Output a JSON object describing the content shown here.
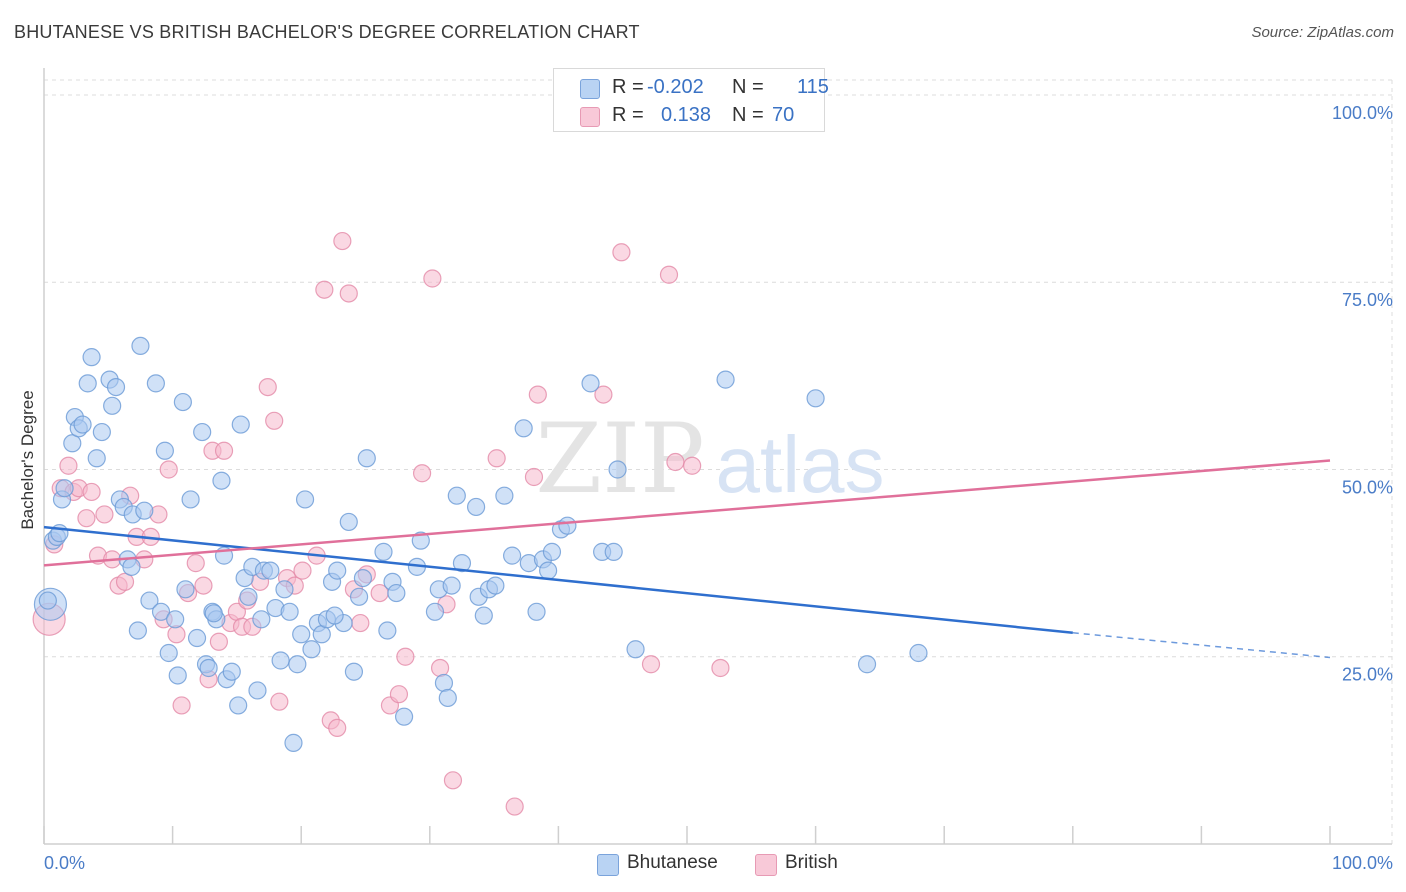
{
  "title": "BHUTANESE VS BRITISH BACHELOR'S DEGREE CORRELATION CHART",
  "source": "Source: ZipAtlas.com",
  "watermark": {
    "zip": "ZIP",
    "atlas": "atlas"
  },
  "legend": {
    "r_label": "R =",
    "n_label": "N =",
    "rows": [
      {
        "r": "-0.202",
        "n": "115"
      },
      {
        "r": "0.138",
        "n": "70"
      }
    ]
  },
  "colors": {
    "blue_fill": "#a9c8f0",
    "blue_stroke": "#6a9ad6",
    "blue_line": "#2f6fce",
    "pink_fill": "#f6b8cc",
    "pink_stroke": "#e38aa8",
    "pink_line": "#e0709a",
    "tick_text": "#4a7cc7"
  },
  "chart_data": {
    "type": "scatter",
    "title": "BHUTANESE VS BRITISH BACHELOR'S DEGREE CORRELATION CHART",
    "xlabel": "",
    "ylabel": "Bachelor's Degree",
    "xlim": [
      0,
      100
    ],
    "ylim": [
      0,
      102
    ],
    "x_tick_labels": [
      "0.0%",
      "100.0%"
    ],
    "y_ticks": [
      25,
      50,
      75,
      100
    ],
    "y_tick_labels": [
      "25.0%",
      "50.0%",
      "75.0%",
      "100.0%"
    ],
    "grid": true,
    "legend_position": "bottom",
    "series": [
      {
        "name": "Bhutanese",
        "color": "#a9c8f0",
        "trend": {
          "x0": 0,
          "y0": 42.3,
          "x1": 80,
          "y1": 28.2,
          "dashed_to_x": 100,
          "dashed_to_y": 24.9
        },
        "points": [
          [
            0.5,
            32
          ],
          [
            0.7,
            40.5
          ],
          [
            1,
            41
          ],
          [
            1.4,
            46
          ],
          [
            1.6,
            47.5
          ],
          [
            2.2,
            53.5
          ],
          [
            2.4,
            57
          ],
          [
            2.7,
            55.5
          ],
          [
            3,
            56
          ],
          [
            3.4,
            61.5
          ],
          [
            3.7,
            65
          ],
          [
            4.1,
            51.5
          ],
          [
            4.5,
            55
          ],
          [
            5.1,
            62
          ],
          [
            5.3,
            58.5
          ],
          [
            5.6,
            61
          ],
          [
            5.9,
            46
          ],
          [
            6.2,
            45
          ],
          [
            6.5,
            38
          ],
          [
            6.9,
            44
          ],
          [
            7.3,
            28.5
          ],
          [
            7.5,
            66.5
          ],
          [
            7.8,
            44.5
          ],
          [
            8.2,
            32.5
          ],
          [
            8.7,
            61.5
          ],
          [
            9.1,
            31
          ],
          [
            9.4,
            52.5
          ],
          [
            9.7,
            25.5
          ],
          [
            10.2,
            30
          ],
          [
            10.4,
            22.5
          ],
          [
            10.8,
            59
          ],
          [
            11,
            34
          ],
          [
            11.4,
            46
          ],
          [
            11.9,
            27.5
          ],
          [
            12.3,
            55
          ],
          [
            12.6,
            24
          ],
          [
            12.8,
            23.5
          ],
          [
            13.1,
            31
          ],
          [
            13.4,
            30
          ],
          [
            13.8,
            48.5
          ],
          [
            14,
            38.5
          ],
          [
            14.2,
            22
          ],
          [
            14.6,
            23
          ],
          [
            15.1,
            18.5
          ],
          [
            15.3,
            56
          ],
          [
            15.6,
            35.5
          ],
          [
            15.9,
            33
          ],
          [
            16.2,
            37
          ],
          [
            16.6,
            20.5
          ],
          [
            16.9,
            30
          ],
          [
            17.1,
            36.5
          ],
          [
            17.6,
            36.5
          ],
          [
            18,
            31.5
          ],
          [
            18.4,
            24.5
          ],
          [
            18.7,
            34
          ],
          [
            19.1,
            31
          ],
          [
            19.4,
            13.5
          ],
          [
            19.7,
            24
          ],
          [
            20,
            28
          ],
          [
            20.3,
            46
          ],
          [
            20.8,
            26
          ],
          [
            21.3,
            29.5
          ],
          [
            21.6,
            28
          ],
          [
            22,
            30
          ],
          [
            22.4,
            35
          ],
          [
            22.8,
            36.5
          ],
          [
            23.3,
            29.5
          ],
          [
            23.7,
            43
          ],
          [
            24.1,
            23
          ],
          [
            24.5,
            33
          ],
          [
            24.8,
            35.5
          ],
          [
            25.1,
            51.5
          ],
          [
            26.4,
            39
          ],
          [
            26.7,
            28.5
          ],
          [
            27.1,
            35
          ],
          [
            27.4,
            33.5
          ],
          [
            28,
            17
          ],
          [
            29,
            37
          ],
          [
            29.3,
            40.5
          ],
          [
            30.4,
            31
          ],
          [
            30.7,
            34
          ],
          [
            31.1,
            21.5
          ],
          [
            31.4,
            19.5
          ],
          [
            31.7,
            34.5
          ],
          [
            32.1,
            46.5
          ],
          [
            32.5,
            37.5
          ],
          [
            33.6,
            45
          ],
          [
            33.8,
            33
          ],
          [
            34.2,
            30.5
          ],
          [
            34.6,
            34
          ],
          [
            35.1,
            34.5
          ],
          [
            35.8,
            46.5
          ],
          [
            36.4,
            38.5
          ],
          [
            37.3,
            55.5
          ],
          [
            37.7,
            37.5
          ],
          [
            38.3,
            31
          ],
          [
            38.8,
            38
          ],
          [
            39.2,
            36.5
          ],
          [
            39.5,
            39
          ],
          [
            40.2,
            42
          ],
          [
            40.7,
            42.5
          ],
          [
            42.5,
            61.5
          ],
          [
            43.4,
            39
          ],
          [
            44.3,
            39
          ],
          [
            44.6,
            50
          ],
          [
            46,
            26
          ],
          [
            53,
            62
          ],
          [
            60,
            59.5
          ],
          [
            64,
            24
          ],
          [
            68,
            25.5
          ],
          [
            0.3,
            32.5
          ],
          [
            1.2,
            41.5
          ],
          [
            6.8,
            37
          ],
          [
            13.2,
            30.8
          ],
          [
            22.6,
            30.5
          ]
        ]
      },
      {
        "name": "British",
        "color": "#f6b8cc",
        "trend": {
          "x0": 0,
          "y0": 37.2,
          "x1": 100,
          "y1": 51.2
        },
        "points": [
          [
            0.4,
            30
          ],
          [
            0.8,
            40
          ],
          [
            1.3,
            47.5
          ],
          [
            1.9,
            50.5
          ],
          [
            2.3,
            47
          ],
          [
            2.7,
            47.5
          ],
          [
            3.3,
            43.5
          ],
          [
            3.7,
            47
          ],
          [
            4.2,
            38.5
          ],
          [
            4.7,
            44
          ],
          [
            5.3,
            38
          ],
          [
            5.8,
            34.5
          ],
          [
            6.3,
            35
          ],
          [
            6.7,
            46.5
          ],
          [
            7.2,
            41
          ],
          [
            7.8,
            38
          ],
          [
            8.3,
            41
          ],
          [
            8.9,
            44
          ],
          [
            9.3,
            30
          ],
          [
            9.7,
            50
          ],
          [
            10.3,
            28
          ],
          [
            10.7,
            18.5
          ],
          [
            11.2,
            33.5
          ],
          [
            11.8,
            37.5
          ],
          [
            12.4,
            34.5
          ],
          [
            12.8,
            22
          ],
          [
            13.1,
            52.5
          ],
          [
            13.6,
            27
          ],
          [
            14,
            52.5
          ],
          [
            14.5,
            29.5
          ],
          [
            15,
            31
          ],
          [
            15.4,
            29
          ],
          [
            15.8,
            32.5
          ],
          [
            16.2,
            29
          ],
          [
            16.8,
            35
          ],
          [
            17.4,
            61
          ],
          [
            17.9,
            56.5
          ],
          [
            18.3,
            19
          ],
          [
            18.9,
            35.5
          ],
          [
            19.5,
            34.5
          ],
          [
            20.1,
            36.5
          ],
          [
            21.2,
            38.5
          ],
          [
            21.8,
            74
          ],
          [
            22.3,
            16.5
          ],
          [
            22.8,
            15.5
          ],
          [
            23.2,
            80.5
          ],
          [
            23.7,
            73.5
          ],
          [
            24.1,
            34
          ],
          [
            24.6,
            29.5
          ],
          [
            25.1,
            36
          ],
          [
            26.1,
            33.5
          ],
          [
            26.9,
            18.5
          ],
          [
            27.6,
            20
          ],
          [
            28.1,
            25
          ],
          [
            29.4,
            49.5
          ],
          [
            30.2,
            75.5
          ],
          [
            30.8,
            23.5
          ],
          [
            31.3,
            32
          ],
          [
            31.8,
            8.5
          ],
          [
            35.2,
            51.5
          ],
          [
            36.6,
            5
          ],
          [
            38.1,
            49
          ],
          [
            38.4,
            60
          ],
          [
            43.5,
            60
          ],
          [
            44.9,
            79
          ],
          [
            47.2,
            24
          ],
          [
            48.6,
            76
          ],
          [
            49.1,
            51
          ],
          [
            50.4,
            50.5
          ],
          [
            52.6,
            23.5
          ]
        ]
      }
    ]
  },
  "bottom_legend": [
    {
      "label": "Bhutanese"
    },
    {
      "label": "British"
    }
  ]
}
